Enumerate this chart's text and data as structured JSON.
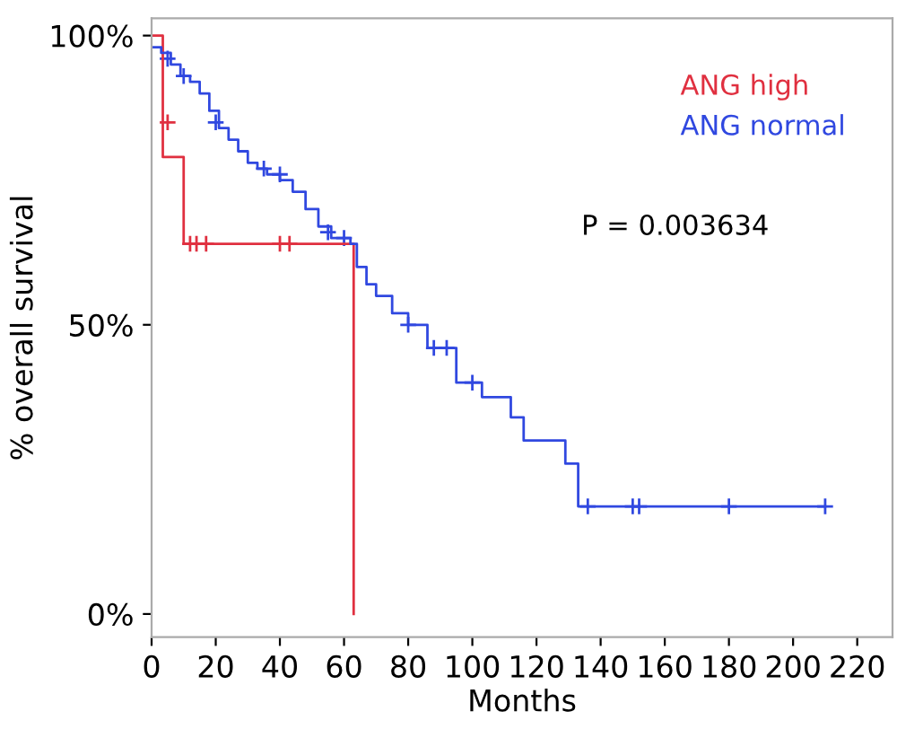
{
  "chart_data": {
    "type": "step",
    "xlabel": "Months",
    "ylabel": "% overall survival",
    "xlim": [
      0,
      231
    ],
    "xticks": [
      0,
      20,
      40,
      60,
      80,
      100,
      120,
      140,
      160,
      180,
      200,
      220
    ],
    "ylim": [
      -4,
      103
    ],
    "yticks": [
      {
        "value": 0,
        "label": "0%"
      },
      {
        "value": 50,
        "label": "50%"
      },
      {
        "value": 100,
        "label": "100%"
      }
    ],
    "grid": false,
    "legend": "top right",
    "annotations": [
      "P = 0.003634"
    ],
    "series": [
      {
        "name": "ANG high",
        "color": "#e03040",
        "x": [
          0,
          3.5,
          10,
          63,
          63
        ],
        "values": [
          100,
          79,
          64,
          64,
          0
        ]
      },
      {
        "name": "ANG normal",
        "color": "#3048e0",
        "x": [
          0,
          3,
          6,
          9,
          12,
          15,
          18,
          21,
          24,
          27,
          30,
          33,
          36,
          40,
          44,
          48,
          52,
          56,
          62,
          64,
          67,
          70,
          75,
          80,
          86,
          95,
          103,
          112,
          116,
          129,
          133,
          210
        ],
        "values": [
          98,
          97,
          95,
          93,
          92,
          90,
          87,
          84,
          82,
          80,
          78,
          77,
          76,
          75,
          73,
          70,
          67,
          65,
          64,
          60,
          57,
          55,
          52,
          50,
          46,
          40,
          37.5,
          34,
          30,
          26,
          18.6,
          18.6
        ]
      },
      {
        "type": "scatter",
        "marker": "cross",
        "color": "#e03040",
        "x": [
          5,
          12,
          14,
          17,
          40,
          43
        ],
        "values": [
          85,
          64,
          64,
          64,
          64,
          64
        ]
      },
      {
        "type": "scatter",
        "marker": "cross",
        "color": "#3048e0",
        "x": [
          5,
          10,
          20,
          35,
          40,
          55,
          60,
          80,
          88,
          92,
          100,
          136,
          150,
          152,
          180,
          210
        ],
        "values": [
          96,
          93,
          85,
          77,
          76,
          66,
          65,
          50,
          46,
          46,
          40,
          18.6,
          18.6,
          18.6,
          18.6,
          18.6
        ]
      }
    ]
  }
}
